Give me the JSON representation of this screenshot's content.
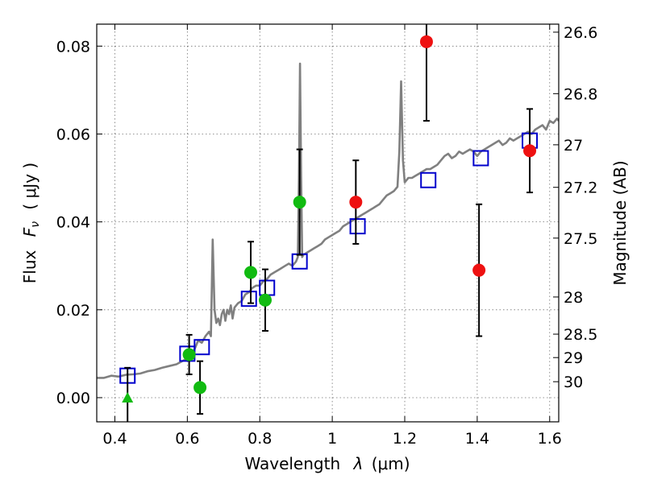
{
  "chart_data": {
    "type": "scatter",
    "title": "",
    "xlabel": "Wavelength",
    "xlabel_symbol": "λ",
    "xlabel_unit": "(μm)",
    "ylabel": "Flux",
    "ylabel_symbol": "F",
    "ylabel_subscript": "ν",
    "ylabel_unit": "( μJy )",
    "y2label": "Magnitude (AB)",
    "xlim": [
      0.35,
      1.625
    ],
    "ylim": [
      -0.0055,
      0.085
    ],
    "grid": true,
    "x_ticks": [
      0.4,
      0.6,
      0.8,
      1.0,
      1.2,
      1.4,
      1.6
    ],
    "x_tick_labels": [
      "0.4",
      "0.6",
      "0.8",
      "1",
      "1.2",
      "1.4",
      "1.6"
    ],
    "y_ticks": [
      0.0,
      0.02,
      0.04,
      0.06,
      0.08
    ],
    "y_tick_labels": [
      "0.00",
      "0.02",
      "0.04",
      "0.06",
      "0.08"
    ],
    "y2_tick_labels": [
      "26.6",
      "26.8",
      "27",
      "27.2",
      "27.5",
      "28",
      "28.5",
      "29",
      "30"
    ],
    "colors": {
      "spectrum": "#808080",
      "model_photometry": "#0000cc",
      "detections": "#11bb11",
      "nir_points": "#ee1111",
      "errorbars": "#000000"
    },
    "series": [
      {
        "kind": "line",
        "x": [
          0.35,
          0.37,
          0.39,
          0.41,
          0.43,
          0.45,
          0.47,
          0.49,
          0.51,
          0.53,
          0.55,
          0.57,
          0.59,
          0.6,
          0.61,
          0.62,
          0.63,
          0.64,
          0.65,
          0.66,
          0.665,
          0.67,
          0.675,
          0.68,
          0.685,
          0.69,
          0.695,
          0.7,
          0.705,
          0.71,
          0.715,
          0.72,
          0.725,
          0.73,
          0.74,
          0.75,
          0.76,
          0.77,
          0.78,
          0.79,
          0.8,
          0.81,
          0.82,
          0.83,
          0.84,
          0.85,
          0.86,
          0.87,
          0.88,
          0.89,
          0.9,
          0.905,
          0.908,
          0.911,
          0.914,
          0.917,
          0.92,
          0.93,
          0.94,
          0.95,
          0.96,
          0.97,
          0.98,
          0.99,
          1.0,
          1.01,
          1.02,
          1.03,
          1.04,
          1.05,
          1.06,
          1.07,
          1.08,
          1.09,
          1.1,
          1.11,
          1.12,
          1.13,
          1.14,
          1.15,
          1.16,
          1.17,
          1.18,
          1.185,
          1.19,
          1.195,
          1.2,
          1.205,
          1.21,
          1.22,
          1.23,
          1.24,
          1.25,
          1.26,
          1.27,
          1.28,
          1.29,
          1.3,
          1.31,
          1.32,
          1.33,
          1.34,
          1.35,
          1.36,
          1.37,
          1.38,
          1.39,
          1.4,
          1.41,
          1.42,
          1.43,
          1.44,
          1.45,
          1.46,
          1.47,
          1.48,
          1.49,
          1.5,
          1.51,
          1.52,
          1.53,
          1.54,
          1.55,
          1.56,
          1.57,
          1.58,
          1.59,
          1.6,
          1.61,
          1.62,
          1.625
        ],
        "y": [
          0.0045,
          0.0045,
          0.005,
          0.0048,
          0.0052,
          0.0053,
          0.0055,
          0.006,
          0.0063,
          0.0068,
          0.0072,
          0.0076,
          0.0085,
          0.009,
          0.0095,
          0.011,
          0.013,
          0.0125,
          0.014,
          0.015,
          0.014,
          0.036,
          0.02,
          0.017,
          0.018,
          0.0165,
          0.019,
          0.02,
          0.0175,
          0.02,
          0.019,
          0.021,
          0.018,
          0.0205,
          0.0215,
          0.022,
          0.0235,
          0.024,
          0.025,
          0.0255,
          0.0255,
          0.0265,
          0.027,
          0.028,
          0.0285,
          0.029,
          0.0295,
          0.03,
          0.0305,
          0.03,
          0.031,
          0.032,
          0.05,
          0.076,
          0.05,
          0.032,
          0.0325,
          0.033,
          0.0335,
          0.034,
          0.0345,
          0.035,
          0.036,
          0.0365,
          0.037,
          0.0375,
          0.038,
          0.039,
          0.0395,
          0.04,
          0.0405,
          0.041,
          0.0415,
          0.042,
          0.0425,
          0.043,
          0.0435,
          0.044,
          0.045,
          0.046,
          0.0465,
          0.047,
          0.048,
          0.056,
          0.072,
          0.054,
          0.049,
          0.0495,
          0.05,
          0.05,
          0.0505,
          0.051,
          0.0515,
          0.052,
          0.052,
          0.0525,
          0.053,
          0.054,
          0.055,
          0.0555,
          0.0545,
          0.055,
          0.056,
          0.0555,
          0.056,
          0.0565,
          0.056,
          0.055,
          0.056,
          0.0565,
          0.057,
          0.0575,
          0.058,
          0.0585,
          0.0575,
          0.058,
          0.059,
          0.0585,
          0.059,
          0.0595,
          0.06,
          0.0605,
          0.06,
          0.061,
          0.0615,
          0.062,
          0.061,
          0.063,
          0.0625,
          0.0635,
          0.063
        ]
      },
      {
        "kind": "open-square",
        "x": [
          0.435,
          0.6,
          0.64,
          0.77,
          0.82,
          0.91,
          1.07,
          1.265,
          1.41,
          1.545
        ],
        "y": [
          0.005,
          0.01,
          0.0115,
          0.0225,
          0.025,
          0.031,
          0.039,
          0.0495,
          0.0545,
          0.0585
        ]
      },
      {
        "kind": "filled-circle",
        "x": [
          0.605,
          0.635,
          0.775,
          0.815,
          0.91
        ],
        "y": [
          0.0098,
          0.0023,
          0.0285,
          0.0222,
          0.0445
        ],
        "yerr": [
          0.0045,
          0.006,
          0.007,
          0.007,
          0.012
        ]
      },
      {
        "kind": "filled-triangle",
        "x": [
          0.435
        ],
        "y": [
          0.0
        ],
        "yerr": [
          0.0068
        ]
      },
      {
        "kind": "filled-circle",
        "x": [
          1.065,
          1.26,
          1.405,
          1.545
        ],
        "y": [
          0.0445,
          0.081,
          0.029,
          0.0562
        ],
        "yerr": [
          0.0095,
          0.018,
          0.015,
          0.0095
        ]
      }
    ]
  }
}
